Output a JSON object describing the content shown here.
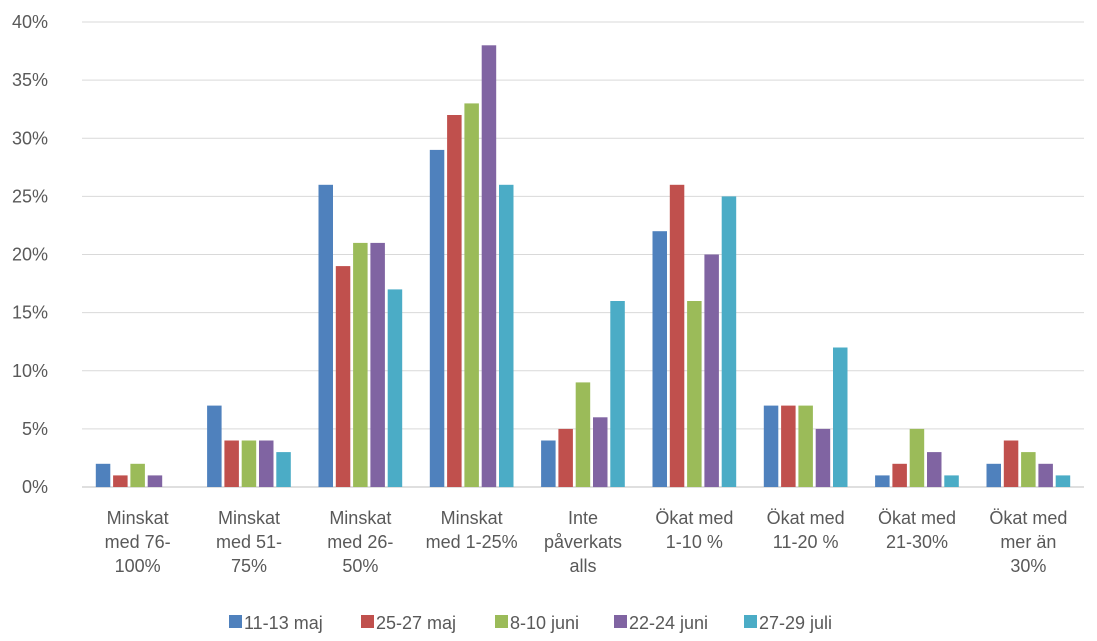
{
  "chart_data": {
    "type": "bar",
    "title": "",
    "xlabel": "",
    "ylabel": "",
    "ylim": [
      0,
      40
    ],
    "yticks": [
      "0%",
      "5%",
      "10%",
      "15%",
      "20%",
      "25%",
      "30%",
      "35%",
      "40%"
    ],
    "grid": true,
    "legend_position": "bottom",
    "categories": [
      [
        "Minskat",
        "med 76-",
        "100%"
      ],
      [
        "Minskat",
        "med 51-",
        "75%"
      ],
      [
        "Minskat",
        "med 26-",
        "50%"
      ],
      [
        "Minskat",
        "med 1-25%"
      ],
      [
        "Inte",
        "påverkats",
        "alls"
      ],
      [
        "Ökat med",
        "1-10 %"
      ],
      [
        "Ökat med",
        "11-20 %"
      ],
      [
        "Ökat med",
        "21-30%"
      ],
      [
        "Ökat med",
        "mer än",
        "30%"
      ]
    ],
    "series": [
      {
        "name": "11-13 maj",
        "color": "#4F81BD",
        "values": [
          2,
          7,
          26,
          29,
          4,
          22,
          7,
          1,
          2
        ]
      },
      {
        "name": "25-27 maj",
        "color": "#C0504D",
        "values": [
          1,
          4,
          19,
          32,
          5,
          26,
          7,
          2,
          4
        ]
      },
      {
        "name": "8-10 juni",
        "color": "#9BBB59",
        "values": [
          2,
          4,
          21,
          33,
          9,
          16,
          7,
          5,
          3
        ]
      },
      {
        "name": "22-24 juni",
        "color": "#8064A2",
        "values": [
          1,
          4,
          21,
          38,
          6,
          20,
          5,
          3,
          2
        ]
      },
      {
        "name": "27-29 juli",
        "color": "#4BACC6",
        "values": [
          0,
          3,
          17,
          26,
          16,
          25,
          12,
          1,
          1
        ]
      }
    ]
  }
}
